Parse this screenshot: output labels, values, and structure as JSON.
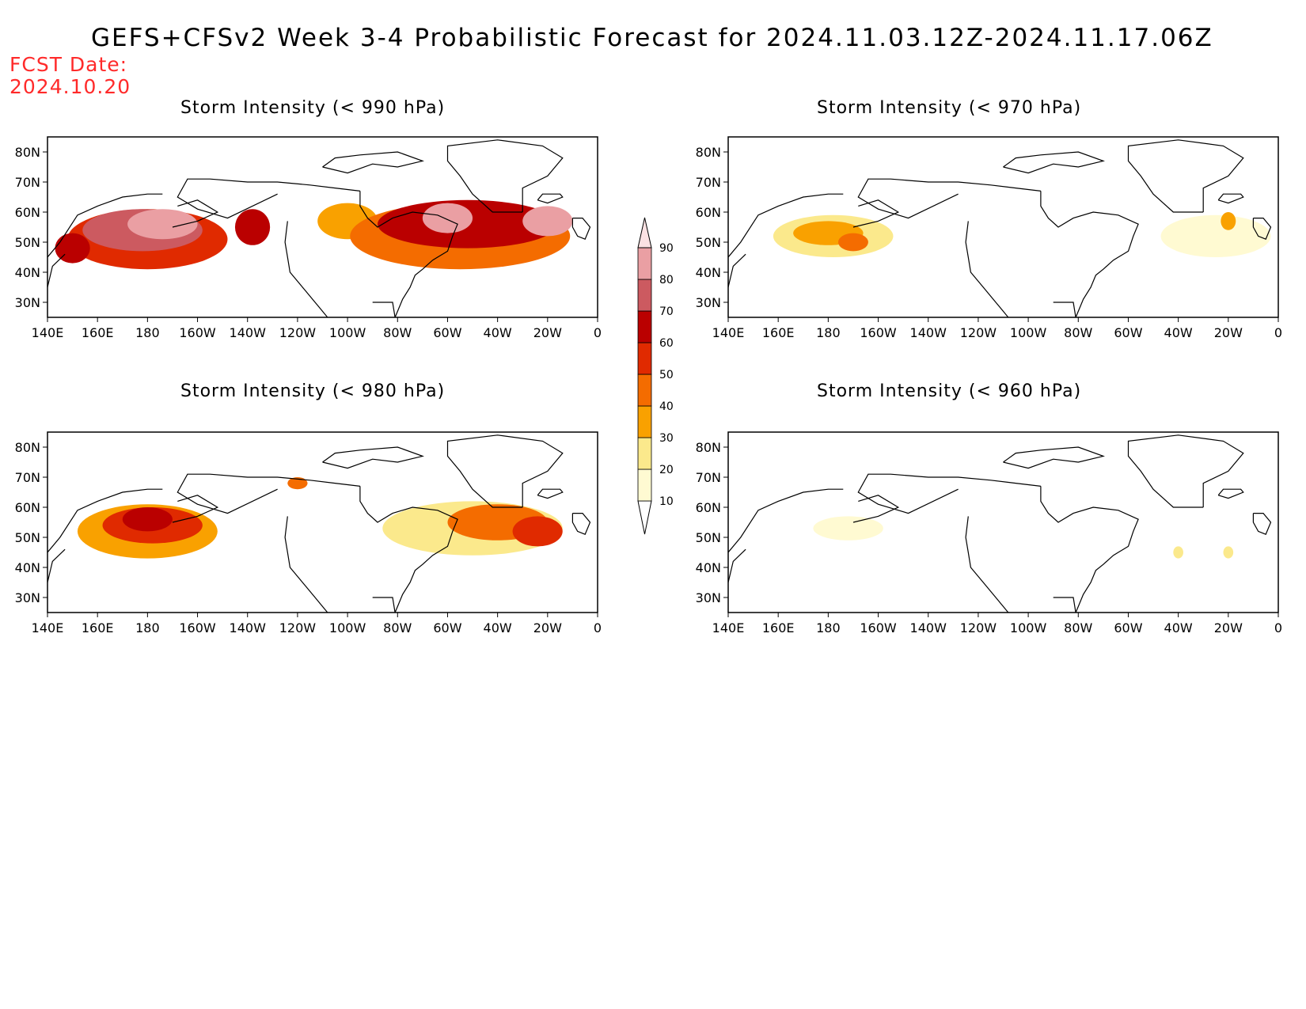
{
  "header": {
    "title": "GEFS+CFSv2 Week 3-4 Probabilistic Forecast for 2024.11.03.12Z-2024.11.17.06Z",
    "fcst_label": "FCST Date:",
    "fcst_date": "2024.10.20"
  },
  "axes": {
    "lon_ticks": [
      "140E",
      "160E",
      "180",
      "160W",
      "140W",
      "120W",
      "100W",
      "80W",
      "60W",
      "40W",
      "20W",
      "0"
    ],
    "lon_values": [
      140,
      160,
      180,
      200,
      220,
      240,
      260,
      280,
      300,
      320,
      340,
      360
    ],
    "lat_ticks": [
      "30N",
      "40N",
      "50N",
      "60N",
      "70N",
      "80N"
    ],
    "lat_values": [
      30,
      40,
      50,
      60,
      70,
      80
    ],
    "lon_range": [
      140,
      360
    ],
    "lat_range": [
      25,
      85
    ]
  },
  "colorbar": {
    "levels": [
      "10",
      "20",
      "30",
      "40",
      "50",
      "60",
      "70",
      "80",
      "90"
    ],
    "colors": [
      "#fffad2",
      "#fbe98c",
      "#f9a100",
      "#f46c00",
      "#e02a00",
      "#ba0000",
      "#cc5a60",
      "#ea9fa3",
      "#fbe2e3"
    ]
  },
  "panels": [
    {
      "title": "Storm Intensity (< 990 hPa)",
      "blobs": [
        {
          "lon": 180,
          "lat": 51,
          "rx": 32,
          "ry": 10,
          "level": 4
        },
        {
          "lon": 178,
          "lat": 54,
          "rx": 24,
          "ry": 7,
          "level": 6
        },
        {
          "lon": 186,
          "lat": 56,
          "rx": 14,
          "ry": 5,
          "level": 7
        },
        {
          "lon": 150,
          "lat": 48,
          "rx": 7,
          "ry": 5,
          "level": 5
        },
        {
          "lon": 222,
          "lat": 55,
          "rx": 7,
          "ry": 6,
          "level": 5
        },
        {
          "lon": 260,
          "lat": 57,
          "rx": 12,
          "ry": 6,
          "level": 2
        },
        {
          "lon": 305,
          "lat": 52,
          "rx": 44,
          "ry": 11,
          "level": 3
        },
        {
          "lon": 308,
          "lat": 56,
          "rx": 36,
          "ry": 8,
          "level": 5
        },
        {
          "lon": 300,
          "lat": 58,
          "rx": 10,
          "ry": 5,
          "level": 7
        },
        {
          "lon": 340,
          "lat": 57,
          "rx": 10,
          "ry": 5,
          "level": 7
        }
      ]
    },
    {
      "title": "Storm Intensity (< 970 hPa)",
      "blobs": [
        {
          "lon": 182,
          "lat": 52,
          "rx": 24,
          "ry": 7,
          "level": 1
        },
        {
          "lon": 180,
          "lat": 53,
          "rx": 14,
          "ry": 4,
          "level": 2
        },
        {
          "lon": 190,
          "lat": 50,
          "rx": 6,
          "ry": 3,
          "level": 3
        },
        {
          "lon": 335,
          "lat": 52,
          "rx": 22,
          "ry": 7,
          "level": 0
        },
        {
          "lon": 340,
          "lat": 57,
          "rx": 3,
          "ry": 3,
          "level": 2
        }
      ]
    },
    {
      "title": "Storm Intensity (< 980 hPa)",
      "blobs": [
        {
          "lon": 180,
          "lat": 52,
          "rx": 28,
          "ry": 9,
          "level": 2
        },
        {
          "lon": 182,
          "lat": 54,
          "rx": 20,
          "ry": 6,
          "level": 4
        },
        {
          "lon": 180,
          "lat": 56,
          "rx": 10,
          "ry": 4,
          "level": 5
        },
        {
          "lon": 240,
          "lat": 68,
          "rx": 4,
          "ry": 2,
          "level": 3
        },
        {
          "lon": 310,
          "lat": 53,
          "rx": 36,
          "ry": 9,
          "level": 1
        },
        {
          "lon": 320,
          "lat": 55,
          "rx": 20,
          "ry": 6,
          "level": 3
        },
        {
          "lon": 336,
          "lat": 52,
          "rx": 10,
          "ry": 5,
          "level": 4
        }
      ]
    },
    {
      "title": "Storm Intensity (< 960 hPa)",
      "blobs": [
        {
          "lon": 188,
          "lat": 53,
          "rx": 14,
          "ry": 4,
          "level": 0
        },
        {
          "lon": 320,
          "lat": 45,
          "rx": 2,
          "ry": 2,
          "level": 1
        },
        {
          "lon": 340,
          "lat": 45,
          "rx": 2,
          "ry": 2,
          "level": 1
        }
      ]
    }
  ]
}
